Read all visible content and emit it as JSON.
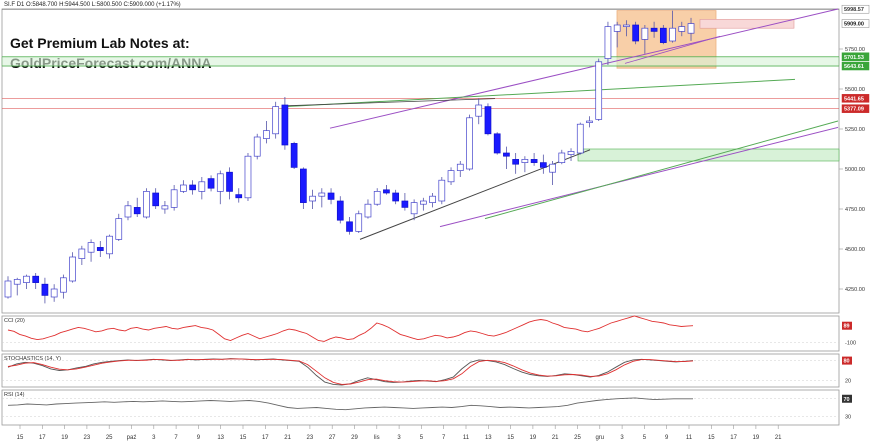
{
  "header": {
    "symbol": "SI.F",
    "interval": "D1",
    "open": "O:5848.700",
    "high": "H:5944.500",
    "low": "L:5800.500",
    "close": "C:5909.000",
    "change": "(+1.17%)"
  },
  "promo": {
    "line1": "Get Premium Lab Notes at:",
    "line2": "GoldPriceForecast.com/ANNA"
  },
  "colors": {
    "bull_body": "#ffffff",
    "bear_body": "#1a1aff",
    "wick": "#5555aa",
    "purple_line": "#9b4fc4",
    "green_line": "#55aa55",
    "gray_line": "#444444",
    "red_level": "#e06060",
    "green_level": "#50b050",
    "orange_zone": "#f7c79a",
    "pink_zone": "#f8d8d8",
    "green_zone": "#d8f2d8"
  },
  "chart_data": [
    {
      "type": "candlestick",
      "title": "",
      "x_tick_labels": [
        "15",
        "17",
        "19",
        "23",
        "25",
        "paź",
        "3",
        "7",
        "9",
        "13",
        "15",
        "17",
        "21",
        "23",
        "27",
        "29",
        "lis",
        "3",
        "5",
        "7",
        "11",
        "13",
        "15",
        "19",
        "21",
        "25",
        "gru",
        "3",
        "5",
        "9",
        "11",
        "15",
        "17",
        "19",
        "21"
      ],
      "y_ticks": [
        4250,
        4500,
        4750,
        5000,
        5250,
        5500,
        5750
      ],
      "ylim": [
        4100,
        6000
      ],
      "price_labels": [
        {
          "value": 5998.57,
          "label": "5998.57"
        },
        {
          "value": 5909.0,
          "label": "5909.00"
        },
        {
          "value": 5701.53,
          "label": "5701.53"
        },
        {
          "value": 5643.61,
          "label": "5643.61"
        },
        {
          "value": 5441.65,
          "label": "5441.65"
        },
        {
          "value": 5377.09,
          "label": "5377.09"
        }
      ],
      "candles": [
        {
          "o": 4200,
          "h": 4330,
          "l": 4190,
          "c": 4300
        },
        {
          "o": 4280,
          "h": 4320,
          "l": 4210,
          "c": 4310
        },
        {
          "o": 4290,
          "h": 4340,
          "l": 4250,
          "c": 4330
        },
        {
          "o": 4330,
          "h": 4350,
          "l": 4250,
          "c": 4290
        },
        {
          "o": 4280,
          "h": 4320,
          "l": 4160,
          "c": 4210
        },
        {
          "o": 4200,
          "h": 4280,
          "l": 4170,
          "c": 4250
        },
        {
          "o": 4230,
          "h": 4340,
          "l": 4190,
          "c": 4320
        },
        {
          "o": 4300,
          "h": 4480,
          "l": 4290,
          "c": 4450
        },
        {
          "o": 4440,
          "h": 4520,
          "l": 4400,
          "c": 4500
        },
        {
          "o": 4480,
          "h": 4560,
          "l": 4420,
          "c": 4540
        },
        {
          "o": 4510,
          "h": 4550,
          "l": 4450,
          "c": 4490
        },
        {
          "o": 4470,
          "h": 4590,
          "l": 4440,
          "c": 4580
        },
        {
          "o": 4560,
          "h": 4720,
          "l": 4550,
          "c": 4690
        },
        {
          "o": 4700,
          "h": 4800,
          "l": 4680,
          "c": 4770
        },
        {
          "o": 4760,
          "h": 4820,
          "l": 4700,
          "c": 4720
        },
        {
          "o": 4700,
          "h": 4880,
          "l": 4690,
          "c": 4860
        },
        {
          "o": 4850,
          "h": 4880,
          "l": 4750,
          "c": 4770
        },
        {
          "o": 4750,
          "h": 4800,
          "l": 4720,
          "c": 4770
        },
        {
          "o": 4760,
          "h": 4900,
          "l": 4740,
          "c": 4870
        },
        {
          "o": 4860,
          "h": 4930,
          "l": 4850,
          "c": 4900
        },
        {
          "o": 4900,
          "h": 4930,
          "l": 4840,
          "c": 4870
        },
        {
          "o": 4860,
          "h": 4950,
          "l": 4810,
          "c": 4920
        },
        {
          "o": 4940,
          "h": 4960,
          "l": 4860,
          "c": 4880
        },
        {
          "o": 4860,
          "h": 4990,
          "l": 4780,
          "c": 4970
        },
        {
          "o": 4980,
          "h": 5010,
          "l": 4810,
          "c": 4860
        },
        {
          "o": 4840,
          "h": 4880,
          "l": 4790,
          "c": 4820
        },
        {
          "o": 4820,
          "h": 5100,
          "l": 4800,
          "c": 5080
        },
        {
          "o": 5080,
          "h": 5220,
          "l": 5060,
          "c": 5200
        },
        {
          "o": 5190,
          "h": 5300,
          "l": 5160,
          "c": 5240
        },
        {
          "o": 5220,
          "h": 5420,
          "l": 5190,
          "c": 5390
        },
        {
          "o": 5400,
          "h": 5450,
          "l": 5120,
          "c": 5150
        },
        {
          "o": 5160,
          "h": 5170,
          "l": 5000,
          "c": 5010
        },
        {
          "o": 5000,
          "h": 5010,
          "l": 4750,
          "c": 4790
        },
        {
          "o": 4800,
          "h": 4870,
          "l": 4750,
          "c": 4830
        },
        {
          "o": 4830,
          "h": 4880,
          "l": 4760,
          "c": 4850
        },
        {
          "o": 4850,
          "h": 4880,
          "l": 4780,
          "c": 4810
        },
        {
          "o": 4800,
          "h": 4830,
          "l": 4660,
          "c": 4680
        },
        {
          "o": 4670,
          "h": 4700,
          "l": 4590,
          "c": 4610
        },
        {
          "o": 4610,
          "h": 4740,
          "l": 4600,
          "c": 4720
        },
        {
          "o": 4700,
          "h": 4810,
          "l": 4690,
          "c": 4780
        },
        {
          "o": 4780,
          "h": 4880,
          "l": 4770,
          "c": 4860
        },
        {
          "o": 4870,
          "h": 4900,
          "l": 4840,
          "c": 4850
        },
        {
          "o": 4850,
          "h": 4870,
          "l": 4780,
          "c": 4800
        },
        {
          "o": 4800,
          "h": 4850,
          "l": 4740,
          "c": 4760
        },
        {
          "o": 4720,
          "h": 4810,
          "l": 4680,
          "c": 4790
        },
        {
          "o": 4780,
          "h": 4820,
          "l": 4740,
          "c": 4800
        },
        {
          "o": 4790,
          "h": 4850,
          "l": 4760,
          "c": 4830
        },
        {
          "o": 4800,
          "h": 4950,
          "l": 4780,
          "c": 4930
        },
        {
          "o": 4920,
          "h": 5010,
          "l": 4900,
          "c": 4990
        },
        {
          "o": 4990,
          "h": 5050,
          "l": 4950,
          "c": 5030
        },
        {
          "o": 5000,
          "h": 5340,
          "l": 4990,
          "c": 5320
        },
        {
          "o": 5330,
          "h": 5440,
          "l": 5280,
          "c": 5400
        },
        {
          "o": 5390,
          "h": 5410,
          "l": 5210,
          "c": 5220
        },
        {
          "o": 5220,
          "h": 5230,
          "l": 5090,
          "c": 5100
        },
        {
          "o": 5100,
          "h": 5140,
          "l": 5000,
          "c": 5080
        },
        {
          "o": 5060,
          "h": 5100,
          "l": 4970,
          "c": 5030
        },
        {
          "o": 5040,
          "h": 5080,
          "l": 4980,
          "c": 5060
        },
        {
          "o": 5060,
          "h": 5100,
          "l": 5020,
          "c": 5040
        },
        {
          "o": 5040,
          "h": 5090,
          "l": 4970,
          "c": 5010
        },
        {
          "o": 4980,
          "h": 5050,
          "l": 4900,
          "c": 5030
        },
        {
          "o": 5040,
          "h": 5120,
          "l": 5030,
          "c": 5100
        },
        {
          "o": 5090,
          "h": 5130,
          "l": 5050,
          "c": 5110
        },
        {
          "o": 5100,
          "h": 5290,
          "l": 5090,
          "c": 5280
        },
        {
          "o": 5290,
          "h": 5330,
          "l": 5260,
          "c": 5300
        },
        {
          "o": 5310,
          "h": 5690,
          "l": 5300,
          "c": 5670
        },
        {
          "o": 5690,
          "h": 5920,
          "l": 5650,
          "c": 5890
        },
        {
          "o": 5860,
          "h": 5920,
          "l": 5760,
          "c": 5900
        },
        {
          "o": 5890,
          "h": 5930,
          "l": 5830,
          "c": 5900
        },
        {
          "o": 5900,
          "h": 5920,
          "l": 5780,
          "c": 5800
        },
        {
          "o": 5810,
          "h": 5900,
          "l": 5720,
          "c": 5880
        },
        {
          "o": 5880,
          "h": 5920,
          "l": 5820,
          "c": 5860
        },
        {
          "o": 5880,
          "h": 5900,
          "l": 5780,
          "c": 5790
        },
        {
          "o": 5800,
          "h": 5990,
          "l": 5790,
          "c": 5880
        },
        {
          "o": 5860,
          "h": 5920,
          "l": 5830,
          "c": 5890
        },
        {
          "o": 5848.7,
          "h": 5944.5,
          "l": 5800.5,
          "c": 5909.0
        }
      ]
    },
    {
      "type": "line",
      "title": "CCI (20)",
      "ylim": [
        -200,
        200
      ],
      "y_tick_labels": [
        {
          "value": -100,
          "label": "-100"
        }
      ],
      "last_value_label": "89",
      "values": [
        40,
        25,
        -10,
        -30,
        -55,
        -70,
        -60,
        -40,
        -20,
        10,
        30,
        50,
        70,
        60,
        40,
        20,
        30,
        50,
        60,
        40,
        30,
        60,
        70,
        50,
        40,
        60,
        70,
        80,
        60,
        50,
        70,
        80,
        90,
        70,
        60,
        40,
        -10,
        -60,
        -80,
        -50,
        -20,
        0,
        -30,
        -60,
        -40,
        -20,
        0,
        30,
        50,
        40,
        20,
        0,
        -40,
        -80,
        -90,
        -60,
        -40,
        -50,
        -70,
        -60,
        -20,
        10,
        60,
        120,
        100,
        70,
        30,
        -10,
        -30,
        -50,
        -70,
        -60,
        -40,
        -20,
        -30,
        -50,
        -40,
        -20,
        10,
        30,
        20,
        0,
        -20,
        -30,
        -10,
        10,
        40,
        70,
        100,
        130,
        150,
        160,
        150,
        120,
        100,
        70,
        60,
        50,
        30,
        20,
        40,
        60,
        90,
        120,
        140,
        160,
        180,
        200,
        180,
        160,
        140,
        130,
        120,
        100,
        90,
        80,
        85,
        89
      ]
    },
    {
      "type": "line",
      "title": "STOCHASTICS (14, Y)",
      "ylim": [
        0,
        100
      ],
      "y_tick_labels": [
        {
          "value": 80,
          "label": "80"
        },
        {
          "value": 20,
          "label": "20"
        }
      ],
      "last_value_label": "80",
      "series": [
        {
          "values": [
            60,
            70,
            75,
            72,
            65,
            55,
            50,
            52,
            58,
            62,
            70,
            75,
            78,
            80,
            82,
            80,
            82,
            84,
            82,
            80,
            82,
            84,
            82,
            84,
            85,
            84,
            86,
            85,
            84,
            82,
            84,
            85,
            82,
            80,
            78,
            60,
            35,
            15,
            8,
            6,
            10,
            20,
            28,
            22,
            16,
            14,
            15,
            18,
            20,
            18,
            16,
            22,
            30,
            55,
            75,
            82,
            80,
            76,
            68,
            56,
            45,
            38,
            34,
            32,
            35,
            40,
            38,
            34,
            30,
            35,
            45,
            60,
            75,
            82,
            84,
            82,
            80,
            78,
            76,
            78,
            80
          ]
        },
        {
          "values": [
            62,
            66,
            72,
            74,
            68,
            60,
            54,
            52,
            55,
            60,
            66,
            72,
            76,
            79,
            81,
            81,
            81,
            83,
            83,
            81,
            81,
            83,
            83,
            83,
            84,
            84,
            85,
            85,
            84,
            83,
            83,
            84,
            83,
            81,
            79,
            68,
            48,
            28,
            14,
            8,
            9,
            15,
            22,
            24,
            19,
            16,
            15,
            16,
            18,
            19,
            17,
            19,
            25,
            40,
            62,
            77,
            81,
            79,
            74,
            64,
            52,
            42,
            36,
            33,
            34,
            37,
            38,
            36,
            32,
            33,
            40,
            52,
            67,
            78,
            83,
            83,
            81,
            79,
            77,
            77,
            79
          ]
        }
      ]
    },
    {
      "type": "line",
      "title": "RSI (14)",
      "ylim": [
        10,
        90
      ],
      "y_tick_labels": [
        {
          "value": 70,
          "label": "70"
        },
        {
          "value": 30,
          "label": "30"
        }
      ],
      "last_value_label": "70",
      "values": [
        55,
        56,
        58,
        57,
        56,
        58,
        59,
        60,
        61,
        62,
        63,
        62,
        63,
        64,
        63,
        64,
        65,
        64,
        63,
        64,
        65,
        66,
        65,
        64,
        65,
        66,
        64,
        60,
        55,
        50,
        48,
        49,
        50,
        48,
        46,
        45,
        47,
        49,
        50,
        51,
        50,
        49,
        48,
        49,
        50,
        51,
        50,
        52,
        55,
        54,
        52,
        50,
        51,
        50,
        49,
        50,
        51,
        52,
        55,
        60,
        63,
        66,
        68,
        70,
        71,
        72,
        70,
        68,
        69,
        70,
        70,
        70
      ]
    }
  ]
}
